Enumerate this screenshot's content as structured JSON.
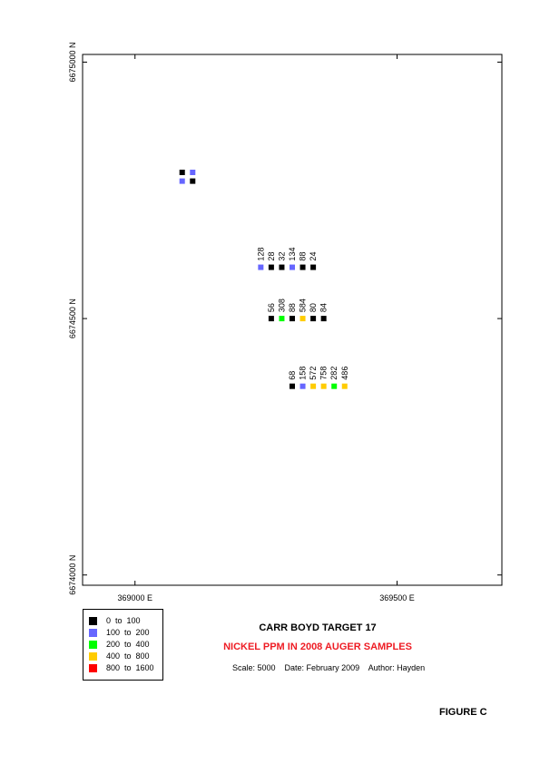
{
  "axes": {
    "x_ticks": [
      {
        "value": 369000,
        "label": "369000 E"
      },
      {
        "value": 369500,
        "label": "369500 E"
      }
    ],
    "y_ticks": [
      {
        "value": 6675000,
        "label": "6675000 N"
      },
      {
        "value": 6674500,
        "label": "6674500 N"
      },
      {
        "value": 6674000,
        "label": "6674000 N"
      }
    ],
    "x_range": [
      368900,
      369700
    ],
    "y_range": [
      6673980,
      6675015
    ]
  },
  "legend": {
    "items": [
      {
        "label": "0  to  100",
        "color": "#000000"
      },
      {
        "label": "100  to  200",
        "color": "#6666ff"
      },
      {
        "label": "200  to  400",
        "color": "#00ff00"
      },
      {
        "label": "400  to  800",
        "color": "#ffcc00"
      },
      {
        "label": "800  to  1600",
        "color": "#ff0000"
      }
    ]
  },
  "title": "CARR BOYD TARGET 17",
  "subtitle": "NICKEL PPM IN 2008 AUGER SAMPLES",
  "subtitle_color": "#ee1c24",
  "caption": "Scale: 5000    Date: February 2009    Author: Hayden",
  "figure_label": "FIGURE C",
  "samples": [
    {
      "e": 369090,
      "n": 6674785,
      "class": 0,
      "label": ""
    },
    {
      "e": 369110,
      "n": 6674785,
      "class": 1,
      "label": ""
    },
    {
      "e": 369090,
      "n": 6674768,
      "class": 1,
      "label": ""
    },
    {
      "e": 369110,
      "n": 6674768,
      "class": 0,
      "label": ""
    },
    {
      "e": 369240,
      "n": 6674600,
      "class": 1,
      "label": "128"
    },
    {
      "e": 369260,
      "n": 6674600,
      "class": 0,
      "label": "28"
    },
    {
      "e": 369280,
      "n": 6674600,
      "class": 0,
      "label": "32"
    },
    {
      "e": 369300,
      "n": 6674600,
      "class": 1,
      "label": "134"
    },
    {
      "e": 369320,
      "n": 6674600,
      "class": 0,
      "label": "88"
    },
    {
      "e": 369340,
      "n": 6674600,
      "class": 0,
      "label": "24"
    },
    {
      "e": 369260,
      "n": 6674500,
      "class": 0,
      "label": "56"
    },
    {
      "e": 369280,
      "n": 6674500,
      "class": 2,
      "label": "308"
    },
    {
      "e": 369300,
      "n": 6674500,
      "class": 0,
      "label": "88"
    },
    {
      "e": 369320,
      "n": 6674500,
      "class": 3,
      "label": "584"
    },
    {
      "e": 369340,
      "n": 6674500,
      "class": 0,
      "label": "80"
    },
    {
      "e": 369360,
      "n": 6674500,
      "class": 0,
      "label": "84"
    },
    {
      "e": 369300,
      "n": 6674368,
      "class": 0,
      "label": "68"
    },
    {
      "e": 369320,
      "n": 6674368,
      "class": 1,
      "label": "158"
    },
    {
      "e": 369340,
      "n": 6674368,
      "class": 3,
      "label": "572"
    },
    {
      "e": 369360,
      "n": 6674368,
      "class": 3,
      "label": "758"
    },
    {
      "e": 369380,
      "n": 6674368,
      "class": 2,
      "label": "282"
    },
    {
      "e": 369400,
      "n": 6674368,
      "class": 3,
      "label": "486"
    }
  ]
}
